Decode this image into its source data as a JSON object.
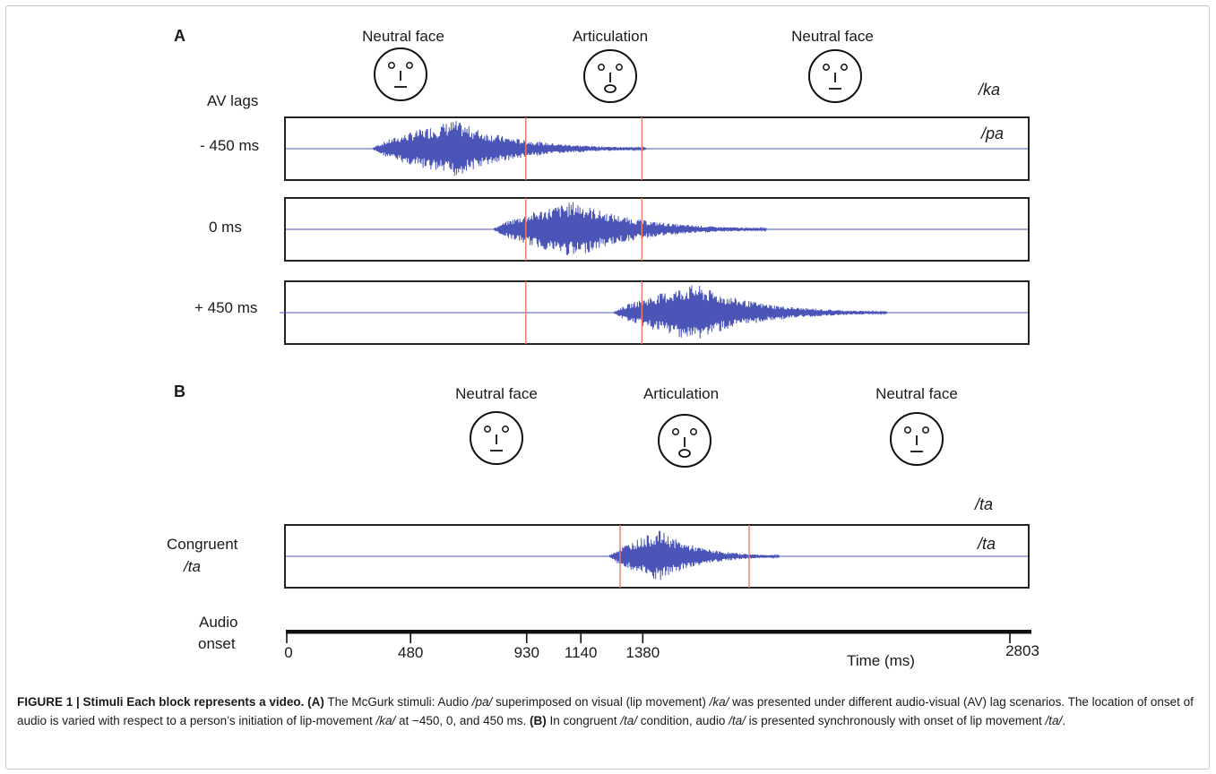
{
  "panel_a": {
    "label": "A",
    "face_labels": [
      "Neutral face",
      "Articulation",
      "Neutral face"
    ],
    "faces": [
      "neutral",
      "articulation",
      "neutral"
    ],
    "visual_syllable": "/ka",
    "audio_syllable": "/pa",
    "row_header": "AV lags",
    "tracks": [
      {
        "lag_label": "- 450 ms",
        "audio_center_ms": 790
      },
      {
        "lag_label": "0 ms",
        "audio_center_ms": 1240
      },
      {
        "lag_label": "+ 450 ms",
        "audio_center_ms": 1690
      }
    ]
  },
  "panel_b": {
    "label": "B",
    "face_labels": [
      "Neutral face",
      "Articulation",
      "Neutral face"
    ],
    "faces": [
      "neutral",
      "articulation",
      "neutral"
    ],
    "visual_syllable": "/ta",
    "audio_syllable": "/ta",
    "track_label_line1": "Congruent",
    "track_label_line2": "/ta"
  },
  "timeline": {
    "label_line1": "Audio",
    "label_line2": "onset",
    "ticks": [
      {
        "value": 0,
        "label": "0"
      },
      {
        "value": 480,
        "label": "480"
      },
      {
        "value": 930,
        "label": "930"
      },
      {
        "value": 1140,
        "label": "1140"
      },
      {
        "value": 1380,
        "label": "1380"
      },
      {
        "value": 2803,
        "label": "2803"
      }
    ],
    "axis_label": "Time (ms)"
  },
  "colors": {
    "waveform": "#4b55b8",
    "marker": "#f07a6a",
    "frame": "#c9c9c9"
  },
  "caption": {
    "lead": "FIGURE 1 | Stimuli Each block represents a video.",
    "tag_a": "(A)",
    "text_a1": " The McGurk stimuli: Audio ",
    "syll_pa": "/pa/",
    "text_a2": " superimposed on visual (lip movement) ",
    "syll_ka": "/ka/",
    "text_a3": " was presented under different audio-visual (AV) lag scenarios. The location of onset of audio is varied with respect to a person’s initiation of lip-movement ",
    "syll_ka2": "/ka/",
    "text_a4": " at −450, 0, and 450 ms. ",
    "tag_b": "(B)",
    "text_b1": " In congruent ",
    "syll_ta": "/ta/",
    "text_b2": " condition, audio ",
    "syll_ta2": "/ta/",
    "text_b3": " is presented synchronously with onset of lip movement ",
    "syll_ta3": "/ta/",
    "text_b4": "."
  }
}
